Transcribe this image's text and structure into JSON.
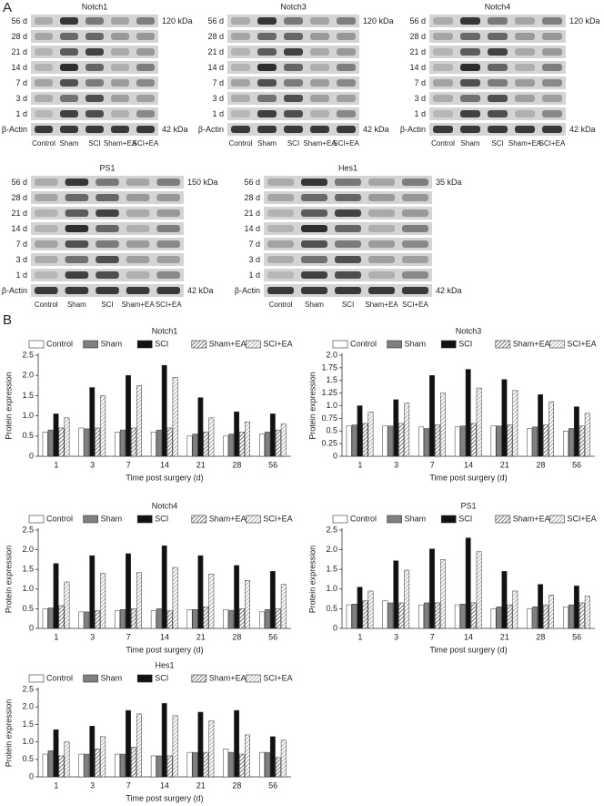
{
  "panel_labels": [
    "A",
    "B"
  ],
  "blots": [
    {
      "title": "Notch1",
      "rows": [
        "56 d",
        "28 d",
        "21 d",
        "14 d",
        "7 d",
        "3 d",
        "1 d",
        "β-Actin"
      ],
      "kda": [
        "120 kDa",
        "42 kDa"
      ],
      "lanes": [
        "Control",
        "Sham",
        "SCI",
        "Sham+EA",
        "SCI+EA"
      ]
    },
    {
      "title": "Notch3",
      "rows": [
        "56 d",
        "28 d",
        "21 d",
        "14 d",
        "7 d",
        "3 d",
        "1 d",
        "β-Actin"
      ],
      "kda": [
        "120 kDa",
        "42 kDa"
      ],
      "lanes": [
        "Control",
        "Sham",
        "SCI",
        "Sham+EA",
        "SCI+EA"
      ]
    },
    {
      "title": "Notch4",
      "rows": [
        "56 d",
        "28 d",
        "21 d",
        "14 d",
        "7 d",
        "3 d",
        "1 d",
        "β-Actin"
      ],
      "kda": [
        "120 kDa",
        "42 kDa"
      ],
      "lanes": [
        "Control",
        "Sham",
        "SCI",
        "Sham+EA",
        "SCI+EA"
      ]
    },
    {
      "title": "PS1",
      "rows": [
        "56 d",
        "28 d",
        "21 d",
        "14 d",
        "7 d",
        "3 d",
        "1 d",
        "β-Actin"
      ],
      "kda": [
        "150 kDa",
        "42 kDa"
      ],
      "lanes": [
        "Control",
        "Sham",
        "SCI",
        "Sham+EA",
        "SCI+EA"
      ]
    },
    {
      "title": "Hes1",
      "rows": [
        "56 d",
        "28 d",
        "21 d",
        "14 d",
        "7 d",
        "3 d",
        "1 d",
        "β-Actin"
      ],
      "kda": [
        "35 kDa",
        "42 kDa"
      ],
      "lanes": [
        "Control",
        "Sham",
        "SCI",
        "Sham+EA",
        "SCI+EA"
      ]
    }
  ],
  "chart_data": [
    {
      "type": "bar",
      "title": "Notch1",
      "x_label": "Time post surgery (d)",
      "y_label": "Protein expression",
      "categories": [
        "1",
        "3",
        "7",
        "14",
        "21",
        "28",
        "56"
      ],
      "ylim": [
        0,
        2.5
      ],
      "yticks": [
        0,
        0.5,
        {
          "value": 1,
          "label": "1.0"
        },
        1.5,
        {
          "value": 2,
          "label": "2.0"
        },
        2.5
      ],
      "series": [
        {
          "name": "Control",
          "color": "#ffffff",
          "values": [
            0.6,
            0.7,
            0.6,
            0.6,
            0.5,
            0.5,
            0.55
          ]
        },
        {
          "name": "Sham",
          "color": "#808080",
          "values": [
            0.65,
            0.68,
            0.65,
            0.65,
            0.55,
            0.55,
            0.6
          ]
        },
        {
          "name": "SCI",
          "color": "#111111",
          "values": [
            1.05,
            1.7,
            2.0,
            2.25,
            1.45,
            1.1,
            1.05
          ]
        },
        {
          "name": "Sham+EA",
          "color": "#555555",
          "hatch": true,
          "values": [
            0.7,
            0.7,
            0.7,
            0.7,
            0.6,
            0.6,
            0.65
          ]
        },
        {
          "name": "SCI+EA",
          "color": "#999999",
          "hatch": true,
          "values": [
            0.95,
            1.5,
            1.75,
            1.95,
            0.95,
            0.85,
            0.8
          ]
        }
      ]
    },
    {
      "type": "bar",
      "title": "Notch3",
      "x_label": "Time post surgery (d)",
      "y_label": "Protein expression",
      "categories": [
        "1",
        "3",
        "7",
        "14",
        "21",
        "28",
        "56"
      ],
      "ylim": [
        0,
        2
      ],
      "yticks": [
        0,
        0.25,
        0.5,
        0.75,
        {
          "value": 1,
          "label": "1.0"
        },
        1.25,
        1.5,
        1.75,
        {
          "value": 2,
          "label": "2.0"
        }
      ],
      "series": [
        {
          "name": "Control",
          "color": "#ffffff",
          "values": [
            0.6,
            0.6,
            0.58,
            0.58,
            0.6,
            0.55,
            0.5
          ]
        },
        {
          "name": "Sham",
          "color": "#808080",
          "values": [
            0.62,
            0.6,
            0.55,
            0.6,
            0.6,
            0.58,
            0.55
          ]
        },
        {
          "name": "SCI",
          "color": "#111111",
          "values": [
            1.0,
            1.12,
            1.6,
            1.72,
            1.52,
            1.22,
            0.98
          ]
        },
        {
          "name": "Sham+EA",
          "color": "#555555",
          "hatch": true,
          "values": [
            0.65,
            0.65,
            0.62,
            0.65,
            0.62,
            0.62,
            0.6
          ]
        },
        {
          "name": "SCI+EA",
          "color": "#999999",
          "hatch": true,
          "values": [
            0.88,
            1.05,
            1.25,
            1.35,
            1.3,
            1.08,
            0.85
          ]
        }
      ]
    },
    {
      "type": "bar",
      "title": "Notch4",
      "x_label": "Time post surgery (d)",
      "y_label": "Protein expression",
      "categories": [
        "1",
        "3",
        "7",
        "14",
        "21",
        "28",
        "56"
      ],
      "ylim": [
        0,
        2.5
      ],
      "yticks": [
        0,
        0.5,
        {
          "value": 1,
          "label": "1.0"
        },
        1.5,
        {
          "value": 2,
          "label": "2.0"
        },
        2.5
      ],
      "series": [
        {
          "name": "Control",
          "color": "#ffffff",
          "values": [
            0.5,
            0.42,
            0.45,
            0.45,
            0.48,
            0.48,
            0.42
          ]
        },
        {
          "name": "Sham",
          "color": "#808080",
          "values": [
            0.52,
            0.42,
            0.48,
            0.5,
            0.48,
            0.46,
            0.48
          ]
        },
        {
          "name": "SCI",
          "color": "#111111",
          "values": [
            1.65,
            1.85,
            1.9,
            2.1,
            1.85,
            1.6,
            1.45
          ]
        },
        {
          "name": "Sham+EA",
          "color": "#555555",
          "hatch": true,
          "values": [
            0.58,
            0.45,
            0.5,
            0.45,
            0.55,
            0.5,
            0.5
          ]
        },
        {
          "name": "SCI+EA",
          "color": "#999999",
          "hatch": true,
          "values": [
            1.18,
            1.4,
            1.42,
            1.55,
            1.38,
            1.22,
            1.12
          ]
        }
      ]
    },
    {
      "type": "bar",
      "title": "PS1",
      "x_label": "Time post surgery (d)",
      "y_label": "Protein expression",
      "categories": [
        "1",
        "3",
        "7",
        "14",
        "21",
        "28",
        "56"
      ],
      "ylim": [
        0,
        2.5
      ],
      "yticks": [
        0,
        0.5,
        {
          "value": 1,
          "label": "1.0"
        },
        1.5,
        {
          "value": 2,
          "label": "2.0"
        },
        2.5
      ],
      "series": [
        {
          "name": "Control",
          "color": "#ffffff",
          "values": [
            0.6,
            0.7,
            0.6,
            0.6,
            0.5,
            0.5,
            0.55
          ]
        },
        {
          "name": "Sham",
          "color": "#808080",
          "values": [
            0.62,
            0.65,
            0.65,
            0.62,
            0.55,
            0.55,
            0.6
          ]
        },
        {
          "name": "SCI",
          "color": "#111111",
          "values": [
            1.05,
            1.72,
            2.02,
            2.3,
            1.45,
            1.12,
            1.08
          ]
        },
        {
          "name": "Sham+EA",
          "color": "#555555",
          "hatch": true,
          "values": [
            0.7,
            0.65,
            0.65,
            0.65,
            0.6,
            0.6,
            0.65
          ]
        },
        {
          "name": "SCI+EA",
          "color": "#999999",
          "hatch": true,
          "values": [
            0.95,
            1.48,
            1.75,
            1.95,
            0.95,
            0.85,
            0.82
          ]
        }
      ]
    },
    {
      "type": "bar",
      "title": "Hes1",
      "x_label": "Time post surgery (d)",
      "y_label": "Protein expression",
      "categories": [
        "1",
        "3",
        "7",
        "14",
        "21",
        "28",
        "56"
      ],
      "ylim": [
        0,
        2.5
      ],
      "yticks": [
        0,
        0.5,
        {
          "value": 1,
          "label": "1.0"
        },
        1.5,
        {
          "value": 2,
          "label": "2.0"
        },
        2.5
      ],
      "series": [
        {
          "name": "Control",
          "color": "#ffffff",
          "values": [
            0.65,
            0.65,
            0.65,
            0.6,
            0.7,
            0.8,
            0.7
          ]
        },
        {
          "name": "Sham",
          "color": "#808080",
          "values": [
            0.75,
            0.65,
            0.65,
            0.6,
            0.7,
            0.7,
            0.7
          ]
        },
        {
          "name": "SCI",
          "color": "#111111",
          "values": [
            1.35,
            1.45,
            1.9,
            2.1,
            1.85,
            1.9,
            1.15
          ]
        },
        {
          "name": "Sham+EA",
          "color": "#555555",
          "hatch": true,
          "values": [
            0.6,
            0.8,
            0.85,
            0.6,
            0.7,
            0.65,
            0.55
          ]
        },
        {
          "name": "SCI+EA",
          "color": "#999999",
          "hatch": true,
          "values": [
            1.0,
            1.15,
            1.8,
            1.75,
            1.6,
            1.2,
            1.05
          ]
        }
      ]
    }
  ]
}
